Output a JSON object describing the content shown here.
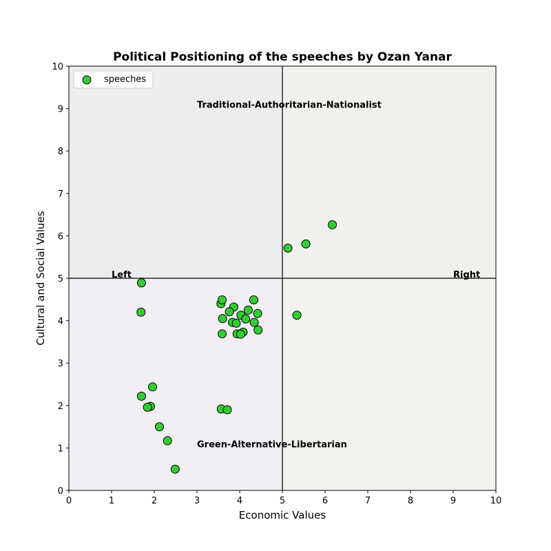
{
  "chart_data": {
    "type": "scatter",
    "title": "Political Positioning of the speeches by Ozan Yanar",
    "xlabel": "Economic Values",
    "ylabel": "Cultural and Social Values",
    "xlim": [
      0,
      10
    ],
    "ylim": [
      0,
      10
    ],
    "xticks": [
      0,
      1,
      2,
      3,
      4,
      5,
      6,
      7,
      8,
      9,
      10
    ],
    "yticks": [
      0,
      1,
      2,
      3,
      4,
      5,
      6,
      7,
      8,
      9,
      10
    ],
    "grid": false,
    "legend_position": "top-left",
    "quadrant_colors": {
      "top_left": "#ededed",
      "top_right": "#f0f1ed",
      "bottom_left": "#f1eef4",
      "bottom_right": "#f2f2ee"
    },
    "divider_lines": {
      "x": 5,
      "y": 5
    },
    "annotations": [
      {
        "text": "Traditional-Authoritarian-Nationalist",
        "x": 3.0,
        "y": 9.0
      },
      {
        "text": "Green-Alternative-Libertarian",
        "x": 3.0,
        "y": 1.0
      },
      {
        "text": "Left",
        "x": 1.0,
        "y": 5.0
      },
      {
        "text": "Right",
        "x": 9.0,
        "y": 5.0
      }
    ],
    "series": [
      {
        "name": "speeches",
        "color": "#33cc33",
        "edge_color": "#000000",
        "points": [
          [
            1.7,
            4.89
          ],
          [
            1.69,
            4.2
          ],
          [
            3.56,
            4.4
          ],
          [
            3.59,
            4.49
          ],
          [
            3.86,
            4.32
          ],
          [
            4.33,
            4.49
          ],
          [
            3.76,
            4.21
          ],
          [
            4.2,
            4.25
          ],
          [
            4.42,
            4.17
          ],
          [
            4.03,
            4.13
          ],
          [
            3.6,
            4.05
          ],
          [
            4.14,
            4.04
          ],
          [
            3.83,
            3.96
          ],
          [
            3.92,
            3.94
          ],
          [
            4.34,
            3.96
          ],
          [
            4.43,
            3.78
          ],
          [
            4.08,
            3.73
          ],
          [
            3.94,
            3.69
          ],
          [
            4.02,
            3.68
          ],
          [
            3.59,
            3.69
          ],
          [
            5.34,
            4.13
          ],
          [
            5.13,
            5.71
          ],
          [
            5.55,
            5.81
          ],
          [
            6.17,
            6.26
          ],
          [
            1.96,
            2.44
          ],
          [
            1.7,
            2.22
          ],
          [
            1.91,
            1.98
          ],
          [
            1.84,
            1.96
          ],
          [
            2.12,
            1.5
          ],
          [
            2.31,
            1.17
          ],
          [
            2.49,
            0.5
          ],
          [
            3.57,
            1.92
          ],
          [
            3.71,
            1.9
          ]
        ]
      }
    ]
  }
}
